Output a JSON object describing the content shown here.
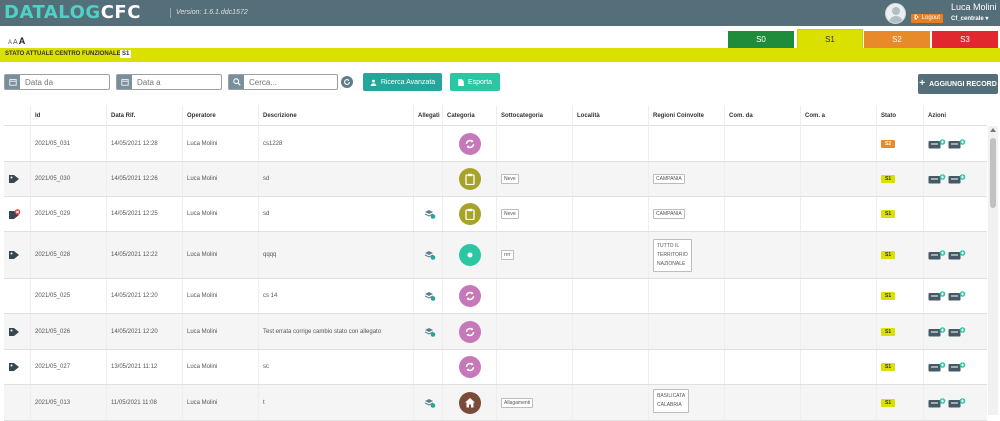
{
  "header": {
    "logo_part1": "DATALOG",
    "logo_part2": "CFC",
    "version": "Version: 1.6.1.ddc1572",
    "username": "Luca Molini",
    "logout_label": "Logout",
    "profile": "Cf_centrale ▾"
  },
  "font_sizer": [
    "A",
    "A",
    "A"
  ],
  "state_tabs": [
    {
      "label": "S0",
      "color": "#1e8c3a",
      "active": false
    },
    {
      "label": "S1",
      "color": "#dae000",
      "active": true
    },
    {
      "label": "S2",
      "color": "#e88a2a",
      "active": false
    },
    {
      "label": "S3",
      "color": "#e0282e",
      "active": false
    }
  ],
  "status_bar": {
    "label": "STATO ATTUALE CENTRO FUNZIONALE",
    "badge": "S1"
  },
  "filters": {
    "date_from_placeholder": "Data da",
    "date_to_placeholder": "Data a",
    "search_placeholder": "Cerca..."
  },
  "buttons": {
    "advanced_search": "Ricerca Avanzata",
    "export": "Esporta",
    "add_record": "AGGIUNGI RECORD"
  },
  "table": {
    "columns": [
      "Id",
      "Data Rif.",
      "Operatore",
      "Descrizione",
      "Allegati",
      "Categoria",
      "Sottocategoria",
      "Località",
      "Regioni Coinvolte",
      "Com. da",
      "Com. a",
      "Stato",
      "Azioni"
    ],
    "rows": [
      {
        "tag": "",
        "id": "2021/05_031",
        "date": "14/05/2021 12:28",
        "operator": "Luca Molini",
        "description": "cs1228",
        "attachment": false,
        "category": "refresh",
        "subcategory": "",
        "regions": [],
        "state": "S2",
        "actions": true
      },
      {
        "tag": "tag",
        "id": "2021/05_030",
        "date": "14/05/2021 12:26",
        "operator": "Luca Molini",
        "description": "sd",
        "attachment": false,
        "category": "clipboard",
        "subcategory": "Neve",
        "regions": [
          "CAMPANIA"
        ],
        "state": "S1",
        "actions": true
      },
      {
        "tag": "tag-x",
        "id": "2021/05_029",
        "date": "14/05/2021 12:25",
        "operator": "Luca Molini",
        "description": "sd",
        "attachment": true,
        "category": "clipboard",
        "subcategory": "Neve",
        "regions": [
          "CAMPANIA"
        ],
        "state": "S1",
        "actions": false
      },
      {
        "tag": "tag",
        "id": "2021/05_028",
        "date": "14/05/2021 12:22",
        "operator": "Luca Molini",
        "description": "qqqq",
        "attachment": true,
        "category": "dot",
        "subcategory": "rrrr",
        "regions": [
          "TUTTO IL",
          "TERRITORIO",
          "NAZIONALE"
        ],
        "state": "S1",
        "actions": true
      },
      {
        "tag": "",
        "id": "2021/05_025",
        "date": "14/05/2021 12:20",
        "operator": "Luca Molini",
        "description": "cs 14",
        "attachment": true,
        "category": "refresh",
        "subcategory": "",
        "regions": [],
        "state": "S1",
        "actions": true
      },
      {
        "tag": "tag",
        "id": "2021/05_026",
        "date": "14/05/2021 12:20",
        "operator": "Luca Molini",
        "description": "Test errata corrige cambio stato con allegato",
        "attachment": true,
        "category": "refresh",
        "subcategory": "",
        "regions": [],
        "state": "S1",
        "actions": true
      },
      {
        "tag": "tag",
        "id": "2021/05_027",
        "date": "13/05/2021 11:12",
        "operator": "Luca Molini",
        "description": "sc",
        "attachment": false,
        "category": "refresh",
        "subcategory": "",
        "regions": [],
        "state": "S1",
        "actions": true
      },
      {
        "tag": "",
        "id": "2021/05_013",
        "date": "11/05/2021 11:08",
        "operator": "Luca Molini",
        "description": "t",
        "attachment": true,
        "category": "home",
        "subcategory": "Allagamenti",
        "regions": [
          "BASILICATA",
          "CALABRIA"
        ],
        "state": "S1",
        "actions": true
      }
    ]
  },
  "colors": {
    "S1": "#dae000",
    "S2": "#e88a2a",
    "refresh": "#c678b8",
    "clipboard": "#a7a32a",
    "dot": "#2bc7a3",
    "home": "#7a4a3a"
  }
}
